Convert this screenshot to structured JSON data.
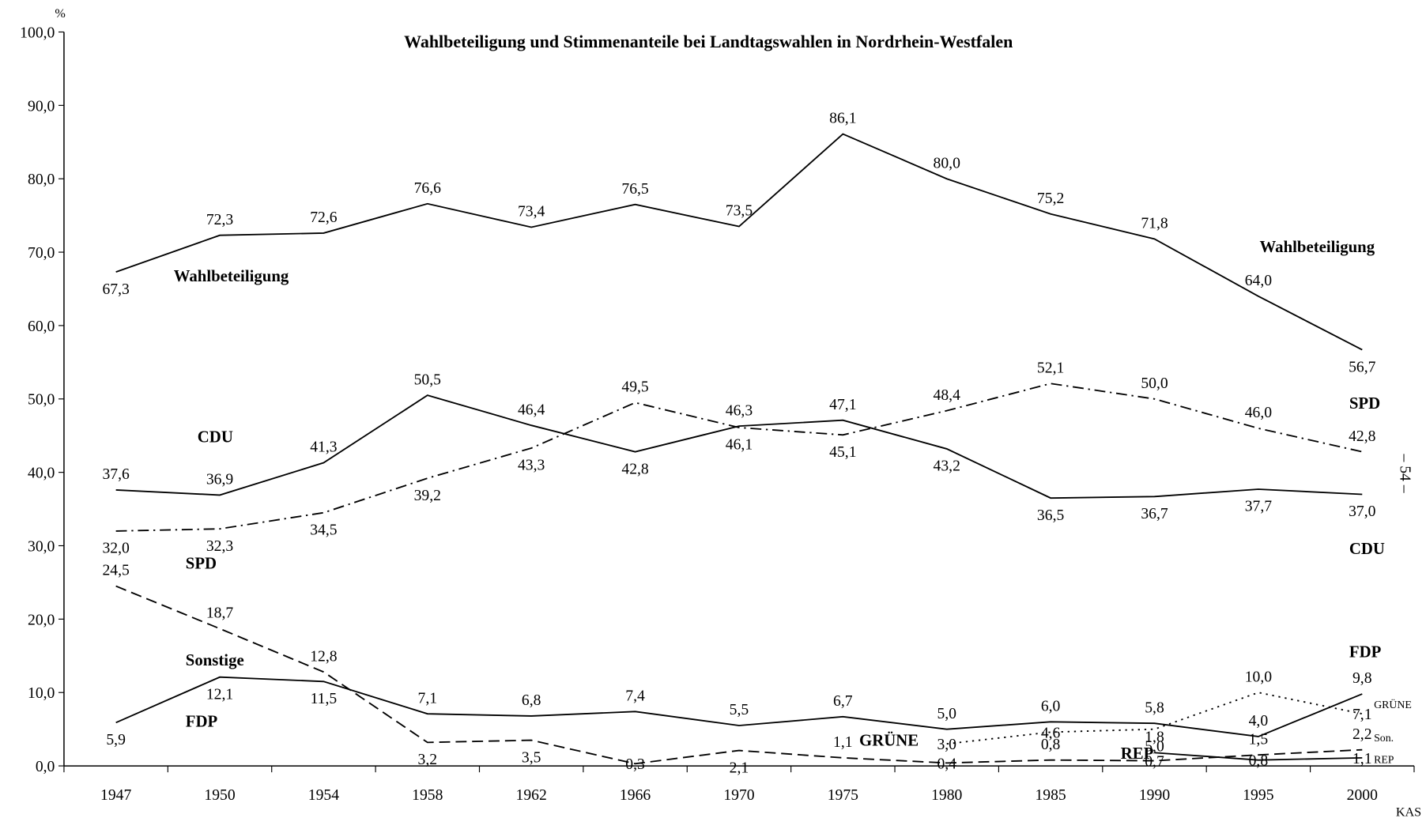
{
  "chart_data": {
    "type": "line",
    "title": "Wahlbeteiligung und Stimmenanteile bei Landtagswahlen in Nordrhein-Westfalen",
    "y_label": "%",
    "source": "KAS",
    "page_number": "– 54 –",
    "categories": [
      "1947",
      "1950",
      "1954",
      "1958",
      "1962",
      "1966",
      "1970",
      "1975",
      "1980",
      "1985",
      "1990",
      "1995",
      "2000"
    ],
    "ylim": [
      0,
      100
    ],
    "yticks": [
      {
        "value": 0,
        "label": "0,0"
      },
      {
        "value": 10,
        "label": "10,0"
      },
      {
        "value": 20,
        "label": "20,0"
      },
      {
        "value": 30,
        "label": "30,0"
      },
      {
        "value": 40,
        "label": "40,0"
      },
      {
        "value": 50,
        "label": "50,0"
      },
      {
        "value": 60,
        "label": "60,0"
      },
      {
        "value": 70,
        "label": "70,0"
      },
      {
        "value": 80,
        "label": "80,0"
      },
      {
        "value": 90,
        "label": "90,0"
      },
      {
        "value": 100,
        "label": "100,0"
      }
    ],
    "series": [
      {
        "name": "Wahlbeteiligung",
        "color": "#000000",
        "dash": "solid",
        "values": [
          67.3,
          72.3,
          72.6,
          76.6,
          73.4,
          76.5,
          73.5,
          86.1,
          80.0,
          75.2,
          71.8,
          64.0,
          56.7
        ],
        "value_labels": [
          "67,3",
          "72,3",
          "72,6",
          "76,6",
          "73,4",
          "76,5",
          "73,5",
          "86,1",
          "80,0",
          "75,2",
          "71,8",
          "64,0",
          "56,7"
        ]
      },
      {
        "name": "CDU",
        "color": "#000000",
        "dash": "solid",
        "values": [
          37.6,
          36.9,
          41.3,
          50.5,
          46.4,
          42.8,
          46.3,
          47.1,
          43.2,
          36.5,
          36.7,
          37.7,
          37.0
        ],
        "value_labels": [
          "37,6",
          "36,9",
          "41,3",
          "50,5",
          "46,4",
          "42,8",
          "46,3",
          "47,1",
          "43,2",
          "36,5",
          "36,7",
          "37,7",
          "37,0"
        ]
      },
      {
        "name": "SPD",
        "color": "#000000",
        "dash": "dashdot",
        "values": [
          32.0,
          32.3,
          34.5,
          39.2,
          43.3,
          49.5,
          46.1,
          45.1,
          48.4,
          52.1,
          50.0,
          46.0,
          42.8
        ],
        "value_labels": [
          "32,0",
          "32,3",
          "34,5",
          "39,2",
          "43,3",
          "49,5",
          "46,1",
          "45,1",
          "48,4",
          "52,1",
          "50,0",
          "46,0",
          "42,8"
        ]
      },
      {
        "name": "FDP",
        "color": "#000000",
        "dash": "solid",
        "values": [
          5.9,
          12.1,
          11.5,
          7.1,
          6.8,
          7.4,
          5.5,
          6.7,
          5.0,
          6.0,
          5.8,
          4.0,
          9.8
        ],
        "value_labels": [
          "5,9",
          "12,1",
          "11,5",
          "7,1",
          "6,8",
          "7,4",
          "5,5",
          "6,7",
          "5,0",
          "6,0",
          "5,8",
          "4,0",
          "9,8"
        ]
      },
      {
        "name": "Sonstige",
        "color": "#000000",
        "dash": "dashed",
        "values": [
          24.5,
          18.7,
          12.8,
          3.2,
          3.5,
          0.3,
          2.1,
          1.1,
          0.4,
          0.8,
          0.7,
          1.5,
          2.2
        ],
        "value_labels": [
          "24,5",
          "18,7",
          "12,8",
          "3,2",
          "3,5",
          "0,3",
          "2,1",
          "1,1",
          "0,4",
          "0,8",
          "0,7",
          "1,5",
          "2,2"
        ]
      },
      {
        "name": "GRÜNE",
        "color": "#000000",
        "dash": "dotted",
        "values": [
          null,
          null,
          null,
          null,
          null,
          null,
          null,
          null,
          3.0,
          4.6,
          5.0,
          10.0,
          7.1
        ],
        "value_labels": [
          null,
          null,
          null,
          null,
          null,
          null,
          null,
          null,
          "3,0",
          "4,6",
          "5,0",
          "10,0",
          "7,1"
        ]
      },
      {
        "name": "REP",
        "color": "#000000",
        "dash": "solid",
        "values": [
          null,
          null,
          null,
          null,
          null,
          null,
          null,
          null,
          null,
          null,
          1.8,
          0.8,
          1.1
        ],
        "value_labels": [
          null,
          null,
          null,
          null,
          null,
          null,
          null,
          null,
          null,
          null,
          "1,8",
          "0,8",
          "1,1"
        ]
      }
    ],
    "annotations": [
      "Wahlbeteiligung",
      "Wahlbeteiligung",
      "CDU",
      "CDU",
      "SPD",
      "SPD",
      "Sonstige",
      "FDP",
      "FDP",
      "GRÜNE",
      "REP",
      "GRÜNE",
      "Son.",
      "REP"
    ]
  }
}
